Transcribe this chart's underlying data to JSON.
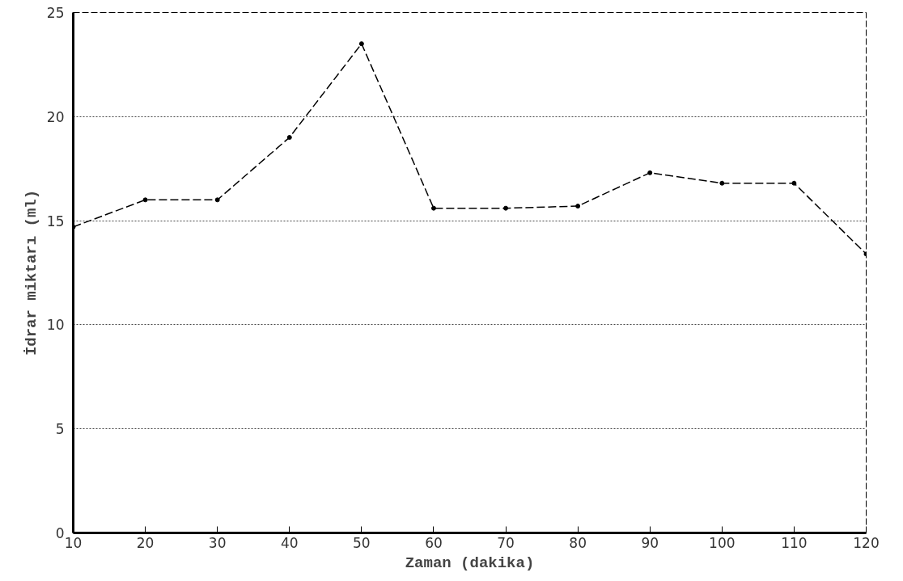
{
  "chart_data": {
    "type": "line",
    "xlabel": "Zaman (dakika)",
    "ylabel": "İdrar miktarı (ml)",
    "x": [
      10,
      20,
      30,
      40,
      50,
      60,
      70,
      80,
      90,
      100,
      110,
      120
    ],
    "series": [
      {
        "color": "#000000",
        "values": [
          14.7,
          16.0,
          16.0,
          19.0,
          23.5,
          15.6,
          15.6,
          15.7,
          17.3,
          16.8,
          16.8,
          13.4
        ]
      }
    ],
    "xlim": [
      10,
      120
    ],
    "ylim": [
      0,
      25
    ],
    "xticks": [
      10,
      20,
      30,
      40,
      50,
      60,
      70,
      80,
      90,
      100,
      110,
      120
    ],
    "yticks": [
      0,
      5,
      10,
      15,
      20,
      25
    ],
    "grid": "y",
    "marker": "circle",
    "line_style": "dashed"
  }
}
